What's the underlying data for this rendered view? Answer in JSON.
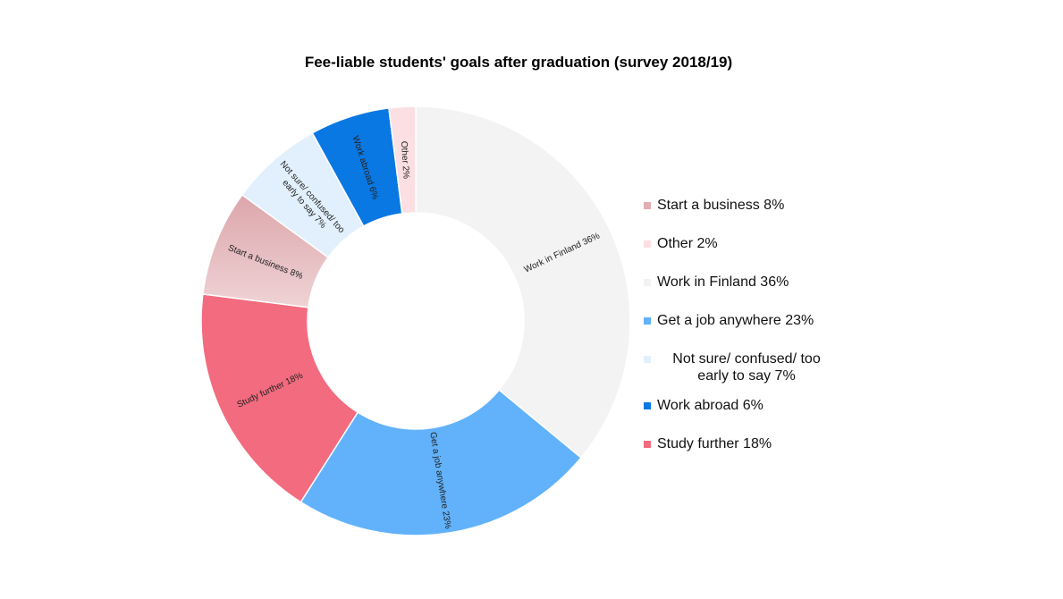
{
  "chart_data": {
    "type": "pie",
    "title": "Fee-liable students' goals after graduation (survey 2018/19)",
    "donut": true,
    "legend_position": "right",
    "slices": [
      {
        "label": "Work in Finland 36%",
        "value": 36,
        "color": "#f3f3f3"
      },
      {
        "label": "Get a job anywhere 23%",
        "value": 23,
        "color": "#62b2fb"
      },
      {
        "label": "Study further 18%",
        "value": 18,
        "color": "#f36b7f"
      },
      {
        "label": "Start a business 8%",
        "value": 8,
        "color": "#e8c0c3"
      },
      {
        "label": "Not sure/ confused/ too early to say 7%",
        "value": 7,
        "color": "#e2f0fd"
      },
      {
        "label": "Work abroad 6%",
        "value": 6,
        "color": "#0a78e2"
      },
      {
        "label": "Other 2%",
        "value": 2,
        "color": "#fcdfe3"
      }
    ],
    "legend": [
      {
        "label": "Start a business 8%",
        "color": "#e2aeb3"
      },
      {
        "label": "Other 2%",
        "color": "#fcdfe3"
      },
      {
        "label": "Work in Finland 36%",
        "color": "#f3f3f3"
      },
      {
        "label": "Get a job anywhere 23%",
        "color": "#62b2fb"
      },
      {
        "label": "Not sure/ confused/ too early to say 7%",
        "color": "#e2f0fd"
      },
      {
        "label": "Work abroad 6%",
        "color": "#0a78e2"
      },
      {
        "label": "Study further 18%",
        "color": "#f36b7f"
      }
    ]
  }
}
